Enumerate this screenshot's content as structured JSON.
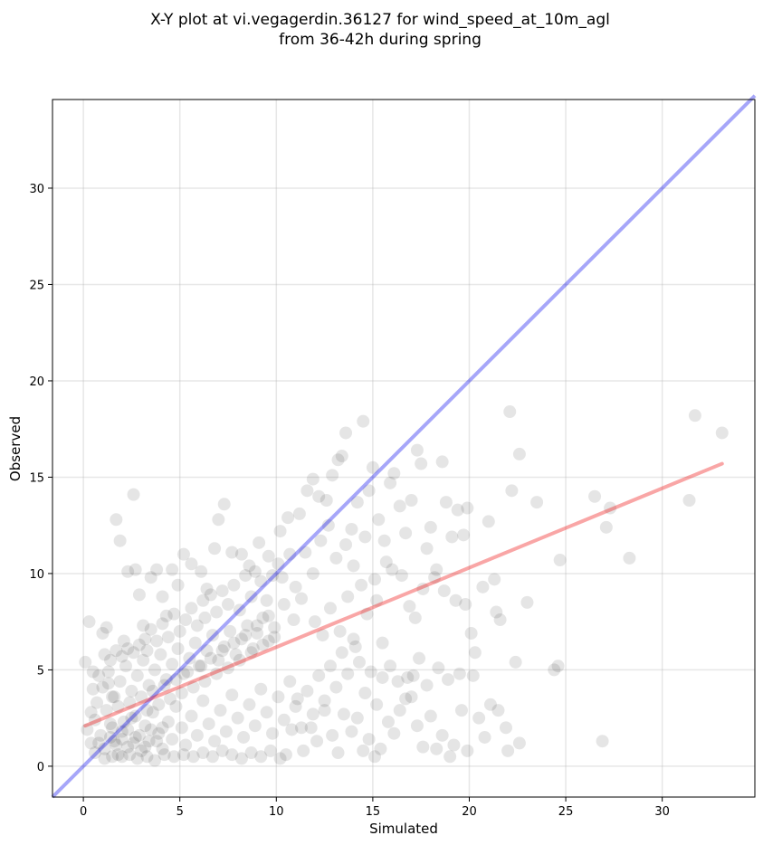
{
  "chart_data": {
    "type": "scatter",
    "title_line1": "X-Y plot at vi.vegagerdin.36127 for wind_speed_at_10m_agl",
    "title_line2": "from 36-42h during spring",
    "xlabel": "Simulated",
    "ylabel": "Observed",
    "xlim": [
      -1.6,
      34.8
    ],
    "ylim": [
      -1.6,
      34.6
    ],
    "xticks": [
      0,
      5,
      10,
      15,
      20,
      25,
      30
    ],
    "yticks": [
      0,
      5,
      10,
      15,
      20,
      25,
      30
    ],
    "grid": true,
    "point_color": "#000000",
    "point_alpha": 0.1,
    "identity_line": {
      "color": "#0000ee",
      "alpha": 0.35,
      "from": [
        -1.6,
        -1.6
      ],
      "to": [
        34.8,
        34.8
      ]
    },
    "regression_line": {
      "color": "#ee0000",
      "alpha": 0.35,
      "from": [
        0.1,
        2.1
      ],
      "to": [
        33.1,
        15.7
      ]
    },
    "points": [
      [
        0.1,
        5.4
      ],
      [
        0.3,
        7.5
      ],
      [
        0.5,
        4.9
      ],
      [
        0.6,
        2.4
      ],
      [
        0.8,
        1.2
      ],
      [
        1.0,
        6.9
      ],
      [
        1.2,
        7.2
      ],
      [
        1.3,
        4.3
      ],
      [
        1.5,
        3.6
      ],
      [
        1.7,
        12.8
      ],
      [
        1.9,
        11.7
      ],
      [
        2.1,
        6.5
      ],
      [
        2.3,
        10.1
      ],
      [
        2.6,
        14.1
      ],
      [
        2.7,
        10.2
      ],
      [
        2.9,
        8.9
      ],
      [
        3.1,
        7.3
      ],
      [
        3.3,
        6.0
      ],
      [
        3.5,
        9.8
      ],
      [
        3.8,
        10.2
      ],
      [
        4.1,
        8.8
      ],
      [
        4.3,
        7.8
      ],
      [
        4.6,
        10.2
      ],
      [
        4.9,
        9.4
      ],
      [
        5.2,
        11.0
      ],
      [
        5.6,
        10.5
      ],
      [
        6.1,
        10.1
      ],
      [
        6.4,
        9.2
      ],
      [
        6.8,
        11.3
      ],
      [
        7.0,
        12.8
      ],
      [
        7.3,
        13.6
      ],
      [
        7.7,
        11.1
      ],
      [
        8.2,
        11.0
      ],
      [
        8.6,
        10.4
      ],
      [
        9.1,
        11.6
      ],
      [
        9.6,
        10.9
      ],
      [
        10.2,
        12.2
      ],
      [
        10.6,
        12.9
      ],
      [
        11.2,
        13.1
      ],
      [
        11.6,
        14.3
      ],
      [
        11.9,
        14.9
      ],
      [
        12.2,
        14.0
      ],
      [
        12.6,
        13.8
      ],
      [
        12.9,
        15.1
      ],
      [
        13.2,
        15.9
      ],
      [
        13.4,
        16.1
      ],
      [
        13.6,
        17.3
      ],
      [
        13.9,
        12.3
      ],
      [
        14.2,
        13.7
      ],
      [
        14.5,
        17.9
      ],
      [
        14.8,
        14.3
      ],
      [
        15.0,
        15.5
      ],
      [
        15.3,
        12.8
      ],
      [
        15.6,
        11.7
      ],
      [
        15.9,
        14.7
      ],
      [
        16.1,
        15.2
      ],
      [
        16.4,
        13.5
      ],
      [
        16.7,
        12.1
      ],
      [
        17.0,
        13.8
      ],
      [
        17.3,
        16.4
      ],
      [
        17.5,
        15.7
      ],
      [
        17.8,
        11.3
      ],
      [
        18.0,
        12.4
      ],
      [
        18.3,
        10.2
      ],
      [
        18.6,
        15.8
      ],
      [
        18.8,
        13.7
      ],
      [
        19.1,
        11.9
      ],
      [
        19.4,
        13.3
      ],
      [
        19.7,
        12.0
      ],
      [
        19.9,
        13.4
      ],
      [
        16.0,
        10.2
      ],
      [
        16.5,
        9.9
      ],
      [
        16.9,
        8.3
      ],
      [
        17.2,
        7.7
      ],
      [
        17.6,
        9.2
      ],
      [
        18.2,
        9.8
      ],
      [
        18.7,
        9.1
      ],
      [
        19.3,
        8.6
      ],
      [
        19.8,
        8.4
      ],
      [
        20.1,
        6.9
      ],
      [
        20.3,
        5.9
      ],
      [
        20.7,
        9.3
      ],
      [
        21.0,
        12.7
      ],
      [
        21.3,
        9.7
      ],
      [
        21.4,
        8.0
      ],
      [
        21.6,
        7.6
      ],
      [
        22.1,
        18.4
      ],
      [
        22.2,
        14.3
      ],
      [
        22.6,
        16.2
      ],
      [
        23.0,
        8.5
      ],
      [
        23.5,
        13.7
      ],
      [
        22.4,
        5.4
      ],
      [
        21.9,
        2.0
      ],
      [
        22.0,
        0.8
      ],
      [
        22.6,
        1.2
      ],
      [
        21.5,
        2.9
      ],
      [
        21.1,
        3.2
      ],
      [
        20.8,
        1.5
      ],
      [
        20.5,
        2.5
      ],
      [
        20.2,
        4.7
      ],
      [
        19.9,
        0.8
      ],
      [
        19.6,
        2.9
      ],
      [
        19.2,
        1.1
      ],
      [
        19.0,
        0.5
      ],
      [
        18.6,
        1.6
      ],
      [
        18.3,
        0.9
      ],
      [
        18.0,
        2.6
      ],
      [
        17.6,
        1.0
      ],
      [
        17.3,
        2.1
      ],
      [
        17.0,
        3.6
      ],
      [
        16.8,
        4.6
      ],
      [
        16.4,
        2.9
      ],
      [
        16.1,
        1.7
      ],
      [
        15.8,
        2.3
      ],
      [
        15.4,
        0.9
      ],
      [
        15.1,
        0.5
      ],
      [
        14.8,
        1.4
      ],
      [
        14.5,
        0.8
      ],
      [
        14.2,
        2.5
      ],
      [
        13.9,
        1.8
      ],
      [
        13.5,
        2.7
      ],
      [
        13.2,
        0.7
      ],
      [
        12.9,
        1.6
      ],
      [
        12.5,
        2.9
      ],
      [
        12.1,
        1.3
      ],
      [
        11.8,
        2.0
      ],
      [
        11.4,
        0.8
      ],
      [
        11.1,
        3.5
      ],
      [
        10.8,
        1.9
      ],
      [
        10.5,
        0.6
      ],
      [
        24.4,
        5.0
      ],
      [
        24.6,
        5.2
      ],
      [
        24.7,
        10.7
      ],
      [
        26.5,
        14.0
      ],
      [
        27.1,
        12.4
      ],
      [
        27.3,
        13.4
      ],
      [
        26.9,
        1.3
      ],
      [
        28.3,
        10.8
      ],
      [
        31.4,
        13.8
      ],
      [
        31.7,
        18.2
      ],
      [
        33.1,
        17.3
      ],
      [
        15.5,
        6.4
      ],
      [
        15.9,
        5.2
      ],
      [
        16.3,
        4.4
      ],
      [
        16.7,
        3.5
      ],
      [
        17.1,
        4.7
      ],
      [
        17.4,
        5.6
      ],
      [
        17.8,
        4.2
      ],
      [
        18.4,
        5.1
      ],
      [
        18.9,
        4.5
      ],
      [
        19.5,
        4.8
      ],
      [
        12.0,
        7.5
      ],
      [
        12.4,
        6.8
      ],
      [
        12.8,
        8.2
      ],
      [
        13.3,
        7.0
      ],
      [
        13.7,
        8.8
      ],
      [
        14.1,
        6.2
      ],
      [
        14.4,
        9.4
      ],
      [
        14.7,
        7.9
      ],
      [
        15.2,
        8.6
      ],
      [
        13.1,
        10.8
      ],
      [
        13.6,
        11.5
      ],
      [
        14.0,
        10.4
      ],
      [
        14.6,
        11.9
      ],
      [
        15.1,
        9.7
      ],
      [
        15.7,
        10.6
      ],
      [
        12.3,
        11.7
      ],
      [
        12.7,
        12.5
      ],
      [
        11.5,
        11.1
      ],
      [
        11.9,
        10.0
      ],
      [
        10.3,
        9.8
      ],
      [
        10.7,
        11.0
      ],
      [
        11.0,
        9.3
      ],
      [
        11.3,
        8.7
      ],
      [
        10.9,
        7.6
      ],
      [
        10.4,
        8.4
      ],
      [
        10.1,
        10.5
      ],
      [
        9.8,
        9.9
      ],
      [
        9.5,
        8.6
      ],
      [
        9.2,
        9.6
      ],
      [
        8.9,
        10.1
      ],
      [
        8.7,
        8.8
      ],
      [
        8.4,
        9.9
      ],
      [
        8.1,
        8.1
      ],
      [
        7.8,
        9.4
      ],
      [
        7.5,
        8.4
      ],
      [
        7.2,
        9.1
      ],
      [
        6.9,
        8.0
      ],
      [
        6.6,
        8.9
      ],
      [
        6.3,
        7.7
      ],
      [
        9.9,
        7.2
      ],
      [
        9.6,
        6.5
      ],
      [
        9.3,
        7.7
      ],
      [
        9.0,
        6.9
      ],
      [
        8.8,
        6.1
      ],
      [
        8.5,
        7.3
      ],
      [
        8.2,
        6.6
      ],
      [
        7.9,
        5.8
      ],
      [
        7.6,
        7.0
      ],
      [
        7.3,
        6.2
      ],
      [
        7.0,
        5.5
      ],
      [
        6.7,
        6.8
      ],
      [
        6.4,
        6.0
      ],
      [
        6.1,
        5.2
      ],
      [
        5.8,
        6.4
      ],
      [
        5.5,
        5.6
      ],
      [
        5.2,
        4.8
      ],
      [
        4.9,
        6.1
      ],
      [
        4.6,
        5.3
      ],
      [
        4.3,
        4.5
      ],
      [
        4.0,
        5.8
      ],
      [
        3.7,
        5.0
      ],
      [
        3.4,
        4.2
      ],
      [
        3.1,
        5.5
      ],
      [
        2.8,
        4.7
      ],
      [
        2.5,
        3.9
      ],
      [
        2.2,
        5.2
      ],
      [
        1.9,
        4.4
      ],
      [
        1.6,
        3.6
      ],
      [
        1.3,
        4.9
      ],
      [
        1.0,
        4.1
      ],
      [
        0.7,
        3.3
      ],
      [
        0.4,
        2.8
      ],
      [
        0.2,
        1.9
      ],
      [
        0.4,
        1.2
      ],
      [
        0.6,
        0.7
      ],
      [
        0.9,
        1.6
      ],
      [
        1.1,
        0.9
      ],
      [
        1.4,
        2.2
      ],
      [
        1.6,
        1.3
      ],
      [
        1.8,
        0.6
      ],
      [
        2.0,
        1.8
      ],
      [
        2.3,
        1.0
      ],
      [
        2.5,
        2.5
      ],
      [
        2.7,
        1.5
      ],
      [
        3.0,
        0.8
      ],
      [
        3.2,
        2.1
      ],
      [
        3.4,
        1.3
      ],
      [
        3.6,
        2.8
      ],
      [
        3.9,
        1.7
      ],
      [
        4.1,
        0.9
      ],
      [
        4.4,
        2.3
      ],
      [
        4.6,
        1.4
      ],
      [
        4.8,
        3.1
      ],
      [
        5.1,
        2.0
      ],
      [
        5.3,
        1.1
      ],
      [
        5.6,
        2.6
      ],
      [
        5.9,
        1.6
      ],
      [
        6.2,
        3.4
      ],
      [
        6.5,
        2.2
      ],
      [
        6.8,
        1.3
      ],
      [
        7.1,
        2.9
      ],
      [
        7.4,
        1.8
      ],
      [
        7.7,
        3.7
      ],
      [
        8.0,
        2.5
      ],
      [
        8.3,
        1.5
      ],
      [
        8.6,
        3.2
      ],
      [
        8.9,
        2.1
      ],
      [
        9.2,
        4.0
      ],
      [
        9.5,
        2.8
      ],
      [
        9.8,
        1.7
      ],
      [
        10.1,
        3.6
      ],
      [
        10.4,
        2.4
      ],
      [
        10.7,
        4.4
      ],
      [
        11.0,
        3.1
      ],
      [
        11.3,
        2.0
      ],
      [
        11.6,
        3.9
      ],
      [
        11.9,
        2.7
      ],
      [
        12.2,
        4.7
      ],
      [
        12.5,
        3.4
      ],
      [
        12.8,
        5.2
      ],
      [
        13.1,
        4.1
      ],
      [
        13.4,
        5.9
      ],
      [
        13.7,
        4.8
      ],
      [
        14.0,
        6.6
      ],
      [
        14.3,
        5.4
      ],
      [
        14.6,
        3.8
      ],
      [
        14.9,
        4.9
      ],
      [
        15.2,
        3.2
      ],
      [
        15.5,
        4.6
      ],
      [
        1.2,
        2.9
      ],
      [
        1.5,
        2.0
      ],
      [
        1.8,
        3.1
      ],
      [
        2.1,
        2.3
      ],
      [
        2.4,
        3.3
      ],
      [
        2.7,
        2.6
      ],
      [
        3.0,
        3.6
      ],
      [
        3.3,
        2.9
      ],
      [
        3.6,
        3.9
      ],
      [
        3.9,
        3.2
      ],
      [
        4.2,
        4.2
      ],
      [
        4.5,
        3.5
      ],
      [
        4.8,
        4.5
      ],
      [
        5.1,
        3.8
      ],
      [
        5.4,
        4.9
      ],
      [
        5.7,
        4.1
      ],
      [
        6.0,
        5.2
      ],
      [
        6.3,
        4.4
      ],
      [
        6.6,
        5.6
      ],
      [
        6.9,
        4.8
      ],
      [
        7.2,
        6.0
      ],
      [
        7.5,
        5.1
      ],
      [
        7.8,
        6.4
      ],
      [
        8.1,
        5.5
      ],
      [
        8.4,
        6.8
      ],
      [
        8.7,
        5.9
      ],
      [
        9.0,
        7.3
      ],
      [
        9.3,
        6.3
      ],
      [
        9.6,
        7.8
      ],
      [
        9.9,
        6.7
      ],
      [
        1.4,
        1.5
      ],
      [
        1.7,
        1.1
      ],
      [
        2.0,
        1.4
      ],
      [
        2.3,
        1.9
      ],
      [
        2.6,
        1.2
      ],
      [
        2.9,
        1.6
      ],
      [
        3.2,
        1.0
      ],
      [
        3.5,
        1.9
      ],
      [
        3.8,
        1.3
      ],
      [
        4.1,
        2.0
      ],
      [
        1.1,
        0.4
      ],
      [
        1.5,
        0.5
      ],
      [
        2.0,
        0.5
      ],
      [
        2.4,
        0.6
      ],
      [
        2.8,
        0.4
      ],
      [
        3.3,
        0.5
      ],
      [
        3.7,
        0.3
      ],
      [
        4.2,
        0.6
      ],
      [
        4.7,
        0.5
      ],
      [
        5.2,
        0.6
      ],
      [
        5.7,
        0.5
      ],
      [
        6.2,
        0.7
      ],
      [
        6.7,
        0.5
      ],
      [
        7.2,
        0.8
      ],
      [
        7.7,
        0.6
      ],
      [
        8.2,
        0.4
      ],
      [
        8.7,
        0.7
      ],
      [
        9.2,
        0.5
      ],
      [
        9.7,
        0.8
      ],
      [
        10.2,
        0.4
      ],
      [
        5.0,
        7.0
      ],
      [
        5.3,
        7.6
      ],
      [
        5.6,
        8.2
      ],
      [
        5.9,
        7.3
      ],
      [
        6.2,
        8.6
      ],
      [
        4.7,
        7.9
      ],
      [
        4.4,
        6.7
      ],
      [
        4.1,
        7.4
      ],
      [
        3.8,
        6.5
      ],
      [
        3.5,
        7.1
      ],
      [
        3.2,
        6.6
      ],
      [
        2.9,
        6.3
      ],
      [
        2.6,
        5.9
      ],
      [
        2.3,
        6.1
      ],
      [
        2.0,
        5.7
      ],
      [
        1.7,
        6.0
      ],
      [
        1.4,
        5.5
      ],
      [
        1.1,
        5.8
      ],
      [
        0.8,
        4.7
      ],
      [
        0.5,
        4.0
      ]
    ]
  }
}
